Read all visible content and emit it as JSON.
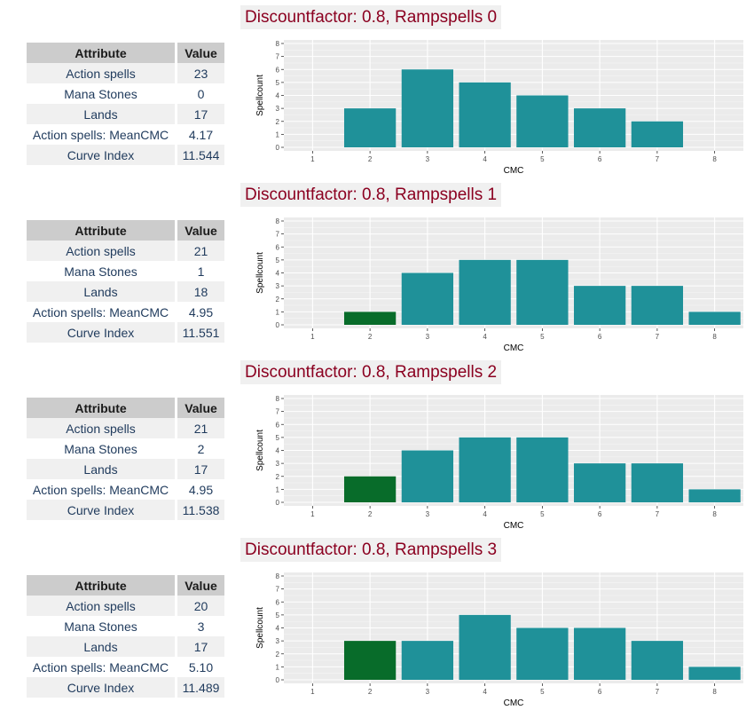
{
  "colors": {
    "action": "#1f9199",
    "ramp": "#086c2a",
    "panel": "#ebebeb",
    "title": "#8b0020"
  },
  "table_headers": [
    "Attribute",
    "Value"
  ],
  "chart_data": [
    {
      "type": "bar",
      "title": "Discountfactor: 0.8, Rampspells 0",
      "xlabel": "CMC",
      "ylabel": "Spellcount",
      "categories": [
        "1",
        "2",
        "3",
        "4",
        "5",
        "6",
        "7",
        "8"
      ],
      "ylim": [
        0,
        8
      ],
      "yticks": [
        "0",
        "1",
        "2",
        "3",
        "4",
        "5",
        "6",
        "7",
        "8"
      ],
      "series": [
        {
          "values": [
            0,
            3,
            6,
            5,
            4,
            3,
            2,
            0
          ],
          "color": "#1f9199"
        },
        {
          "values": [
            0,
            0,
            0,
            0,
            0,
            0,
            0,
            0
          ],
          "color": "#086c2a"
        }
      ],
      "table": [
        [
          "Action spells",
          "23"
        ],
        [
          "Mana Stones",
          "0"
        ],
        [
          "Lands",
          "17"
        ],
        [
          "Action spells: MeanCMC",
          "4.17"
        ],
        [
          "Curve Index",
          "11.544"
        ]
      ]
    },
    {
      "type": "bar",
      "title": "Discountfactor: 0.8, Rampspells 1",
      "xlabel": "CMC",
      "ylabel": "Spellcount",
      "categories": [
        "1",
        "2",
        "3",
        "4",
        "5",
        "6",
        "7",
        "8"
      ],
      "ylim": [
        0,
        8
      ],
      "yticks": [
        "0",
        "1",
        "2",
        "3",
        "4",
        "5",
        "6",
        "7",
        "8"
      ],
      "series": [
        {
          "values": [
            0,
            0,
            4,
            5,
            5,
            3,
            3,
            1
          ],
          "color": "#1f9199"
        },
        {
          "values": [
            0,
            1,
            0,
            0,
            0,
            0,
            0,
            0
          ],
          "color": "#086c2a"
        }
      ],
      "table": [
        [
          "Action spells",
          "21"
        ],
        [
          "Mana Stones",
          "1"
        ],
        [
          "Lands",
          "18"
        ],
        [
          "Action spells: MeanCMC",
          "4.95"
        ],
        [
          "Curve Index",
          "11.551"
        ]
      ]
    },
    {
      "type": "bar",
      "title": "Discountfactor: 0.8, Rampspells 2",
      "xlabel": "CMC",
      "ylabel": "Spellcount",
      "categories": [
        "1",
        "2",
        "3",
        "4",
        "5",
        "6",
        "7",
        "8"
      ],
      "ylim": [
        0,
        8
      ],
      "yticks": [
        "0",
        "1",
        "2",
        "3",
        "4",
        "5",
        "6",
        "7",
        "8"
      ],
      "series": [
        {
          "values": [
            0,
            0,
            4,
            5,
            5,
            3,
            3,
            1
          ],
          "color": "#1f9199"
        },
        {
          "values": [
            0,
            2,
            0,
            0,
            0,
            0,
            0,
            0
          ],
          "color": "#086c2a"
        }
      ],
      "table": [
        [
          "Action spells",
          "21"
        ],
        [
          "Mana Stones",
          "2"
        ],
        [
          "Lands",
          "17"
        ],
        [
          "Action spells: MeanCMC",
          "4.95"
        ],
        [
          "Curve Index",
          "11.538"
        ]
      ]
    },
    {
      "type": "bar",
      "title": "Discountfactor: 0.8, Rampspells 3",
      "xlabel": "CMC",
      "ylabel": "Spellcount",
      "categories": [
        "1",
        "2",
        "3",
        "4",
        "5",
        "6",
        "7",
        "8"
      ],
      "ylim": [
        0,
        8
      ],
      "yticks": [
        "0",
        "1",
        "2",
        "3",
        "4",
        "5",
        "6",
        "7",
        "8"
      ],
      "series": [
        {
          "values": [
            0,
            0,
            3,
            5,
            4,
            4,
            3,
            1
          ],
          "color": "#1f9199"
        },
        {
          "values": [
            0,
            3,
            0,
            0,
            0,
            0,
            0,
            0
          ],
          "color": "#086c2a"
        }
      ],
      "table": [
        [
          "Action spells",
          "20"
        ],
        [
          "Mana Stones",
          "3"
        ],
        [
          "Lands",
          "17"
        ],
        [
          "Action spells: MeanCMC",
          "5.10"
        ],
        [
          "Curve Index",
          "11.489"
        ]
      ]
    }
  ]
}
